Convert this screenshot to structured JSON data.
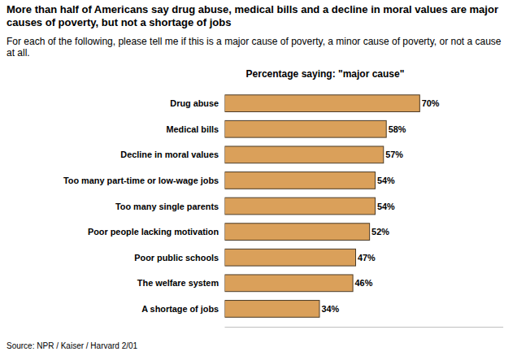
{
  "chart_data": {
    "type": "bar",
    "orientation": "horizontal",
    "title": "More than half of Americans say drug abuse, medical bills and a decline in moral values are major causes of poverty, but not a shortage of jobs",
    "subtitle": "For each of the following, please tell me if this is a major cause of poverty, a minor cause of poverty, or not a cause at all.",
    "xlabel": "Percentage saying: \"major cause\"",
    "source": "Source: NPR / Kaiser / Harvard 2/01",
    "categories": [
      "Drug abuse",
      "Medical bills",
      "Decline in moral values",
      "Too many part-time or low-wage jobs",
      "Too many single parents",
      "Poor people lacking motivation",
      "Poor public schools",
      "The welfare system",
      "A shortage of jobs"
    ],
    "values": [
      70,
      58,
      57,
      54,
      54,
      52,
      47,
      46,
      34
    ],
    "value_labels": [
      "70%",
      "58%",
      "57%",
      "54%",
      "54%",
      "52%",
      "47%",
      "46%",
      "34%"
    ],
    "data_labels": true,
    "color": "#daa05a",
    "xlim": [
      0,
      100
    ],
    "tick_labels": "y",
    "grid": false
  }
}
